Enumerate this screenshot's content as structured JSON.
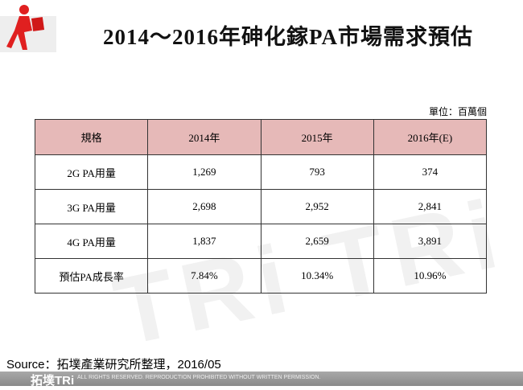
{
  "title": "2014～2016年砷化鎵PA市場需求預估",
  "unit": "單位：百萬個",
  "table": {
    "headers": [
      "規格",
      "2014年",
      "2015年",
      "2016年(E)"
    ],
    "rows": [
      [
        "2G PA用量",
        "1,269",
        "793",
        "374"
      ],
      [
        "3G PA用量",
        "2,698",
        "2,952",
        "2,841"
      ],
      [
        "4G PA用量",
        "1,837",
        "2,659",
        "3,891"
      ],
      [
        "預估PA成長率",
        "7.84%",
        "10.34%",
        "10.96%"
      ]
    ]
  },
  "source": "Source：拓墣產業研究所整理，2016/05",
  "footer": {
    "brand": "拓墣TRi",
    "rights": "ALL RIGHTS RESERVED. REPRODUCTION PROHIBITED WITHOUT WRITTEN PERMISSION."
  },
  "colors": {
    "header_bg": "#e6b9b8",
    "logo_figure": "#e02020"
  }
}
